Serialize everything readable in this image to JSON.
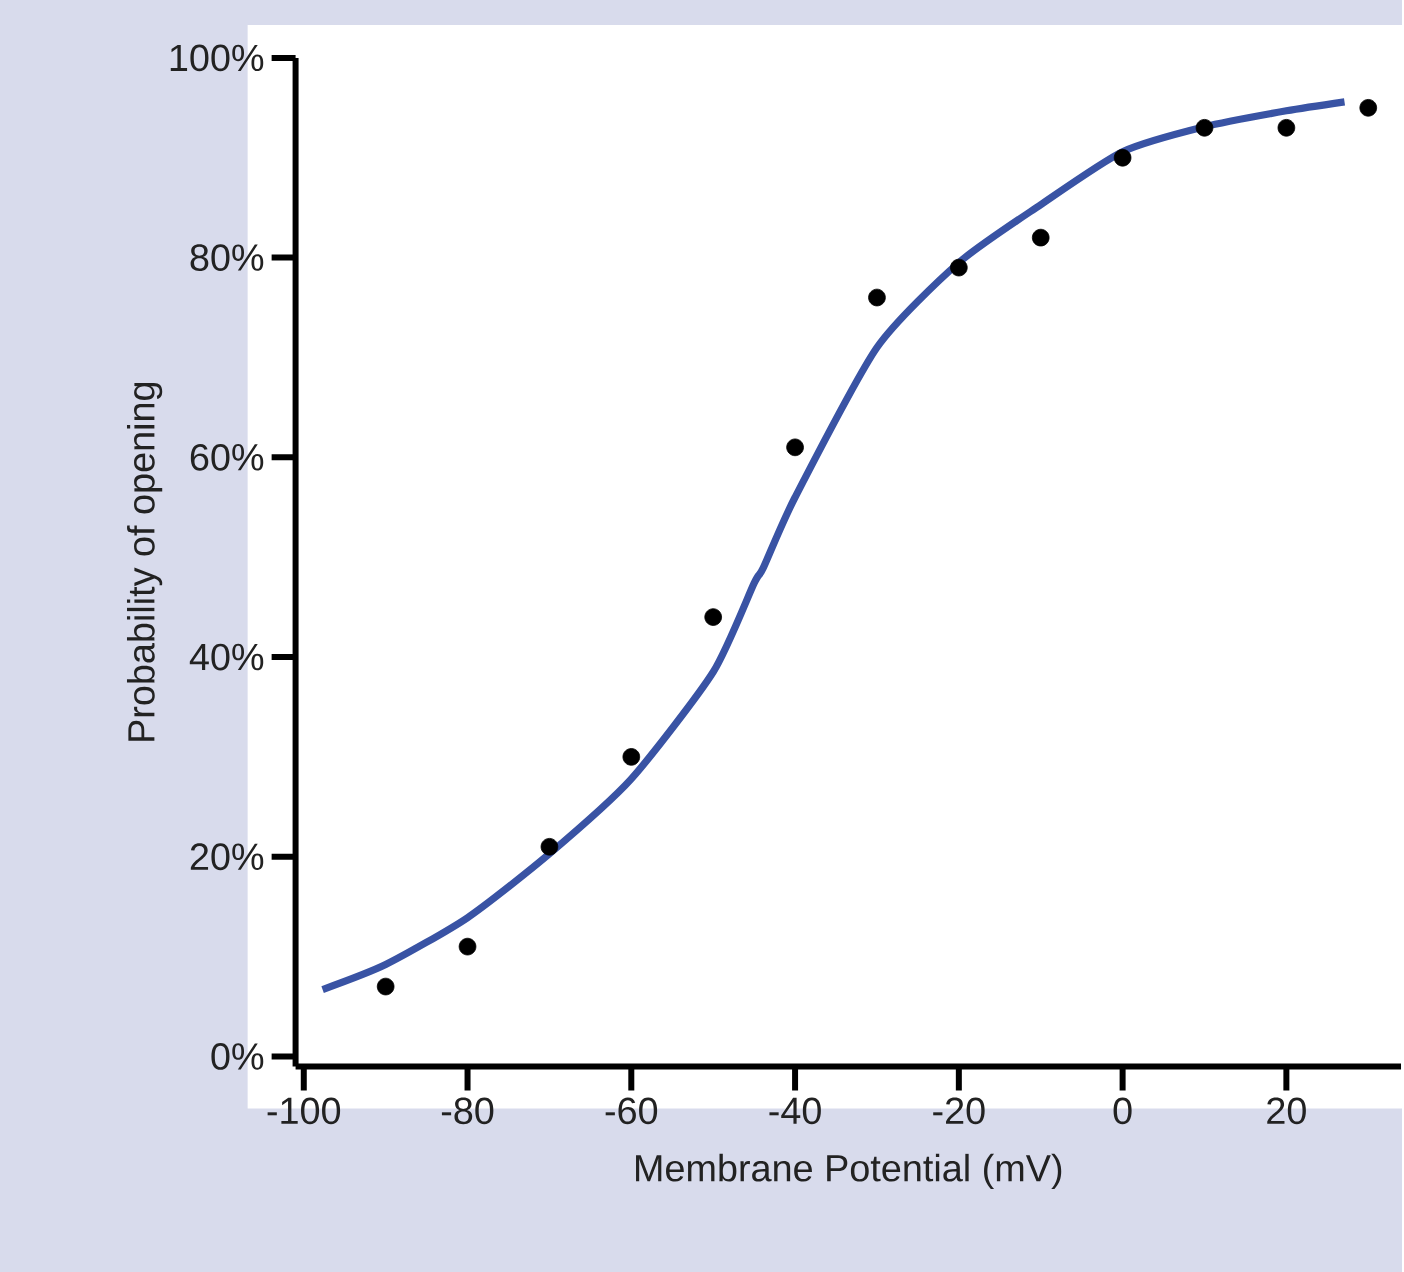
{
  "chart_data": {
    "type": "scatter",
    "xlabel": "Membrane Potential (mV)",
    "ylabel": "Probability of opening",
    "series": [
      {
        "color": "#000000",
        "marker": "circle",
        "x": [
          -90,
          -80,
          -70,
          -60,
          -50,
          -40,
          -30,
          -20,
          -10,
          0,
          10,
          20,
          30
        ],
        "values": [
          7,
          11,
          21,
          30,
          44,
          61,
          76,
          79,
          82,
          90,
          93,
          93,
          95
        ]
      },
      {
        "type": "line",
        "color": "#3953a4",
        "marker": "none",
        "x": [
          -97.7,
          -90,
          -80,
          -70,
          -60,
          -50,
          -45,
          -43.9,
          -40,
          -30,
          -20,
          -10,
          0,
          10,
          20,
          27.1
        ],
        "values": [
          6.7,
          9.2,
          13.9,
          20.3,
          27.8,
          38.5,
          47.4,
          48.9,
          56,
          71,
          79.5,
          85.3,
          90.6,
          93.1,
          94.7,
          95.6
        ]
      }
    ],
    "xlim": [
      -101,
      34
    ],
    "xticks": [
      -100,
      -80,
      -60,
      -40,
      -20,
      0,
      20
    ],
    "ylim": [
      -1,
      100
    ],
    "yticks": [
      {
        "value": 0,
        "label": "0%"
      },
      {
        "value": 20,
        "label": "20%"
      },
      {
        "value": 40,
        "label": "40%"
      },
      {
        "value": 60,
        "label": "60%"
      },
      {
        "value": 80,
        "label": "80%"
      },
      {
        "value": 100,
        "label": "100%"
      }
    ]
  }
}
